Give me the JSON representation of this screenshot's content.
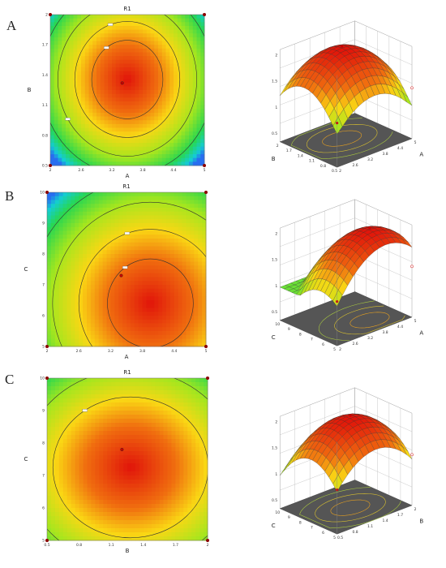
{
  "panel_labels": [
    "A",
    "B",
    "C"
  ],
  "chart_data": [
    {
      "panel": "A",
      "type": "heatmap",
      "title": "R1",
      "xlabel": "A",
      "ylabel": "B",
      "x_ticks": [
        "2",
        "2.6",
        "3.2",
        "3.8",
        "4.4",
        "5"
      ],
      "y_ticks": [
        "0.5",
        "0.8",
        "1.1",
        "1.4",
        "1.7",
        "2"
      ],
      "xlim": [
        2,
        5
      ],
      "ylim": [
        0.5,
        2
      ],
      "optimum": {
        "x": 3.4,
        "y": 1.32
      },
      "contour_levels": 4,
      "surface": {
        "type": "surface",
        "zlabel": "R1",
        "x_axis_label": "A",
        "y_axis_label": "B",
        "z_ticks": [
          "0.5",
          "1",
          "1.5",
          "2"
        ],
        "x_ticks": [
          "2",
          "2.6",
          "3.2",
          "3.8",
          "4.4",
          "5"
        ],
        "y_ticks": [
          "0.5",
          "0.8",
          "1.1",
          "1.4",
          "1.7",
          "2"
        ]
      }
    },
    {
      "panel": "B",
      "type": "heatmap",
      "title": "R1",
      "xlabel": "A",
      "ylabel": "C",
      "x_ticks": [
        "2",
        "2.6",
        "3.2",
        "3.8",
        "4.4",
        "5"
      ],
      "y_ticks": [
        "5",
        "6",
        "7",
        "8",
        "9",
        "10"
      ],
      "xlim": [
        2,
        5
      ],
      "ylim": [
        5,
        10
      ],
      "optimum": {
        "x": 3.4,
        "y": 7.3
      },
      "contour_levels": 4,
      "surface": {
        "type": "surface",
        "zlabel": "R1",
        "x_axis_label": "A",
        "y_axis_label": "C",
        "z_ticks": [
          "0.5",
          "1",
          "1.5",
          "2"
        ],
        "x_ticks": [
          "2",
          "2.6",
          "3.2",
          "3.8",
          "4.4",
          "5"
        ],
        "y_ticks": [
          "5",
          "6",
          "7",
          "8",
          "9",
          "10"
        ]
      }
    },
    {
      "panel": "C",
      "type": "heatmap",
      "title": "R1",
      "xlabel": "B",
      "ylabel": "C",
      "x_ticks": [
        "0.5",
        "0.8",
        "1.1",
        "1.4",
        "1.7",
        "2"
      ],
      "y_ticks": [
        "5",
        "6",
        "7",
        "8",
        "9",
        "10"
      ],
      "xlim": [
        0.5,
        2
      ],
      "ylim": [
        5,
        10
      ],
      "optimum": {
        "x": 1.2,
        "y": 7.8
      },
      "contour_levels": 3,
      "surface": {
        "type": "surface",
        "zlabel": "R1",
        "x_axis_label": "B",
        "y_axis_label": "C",
        "z_ticks": [
          "0.5",
          "1",
          "1.5",
          "2"
        ],
        "x_ticks": [
          "0.5",
          "0.8",
          "1.1",
          "1.4",
          "1.7",
          "2"
        ],
        "y_ticks": [
          "5",
          "6",
          "7",
          "8",
          "9",
          "10"
        ]
      }
    }
  ]
}
